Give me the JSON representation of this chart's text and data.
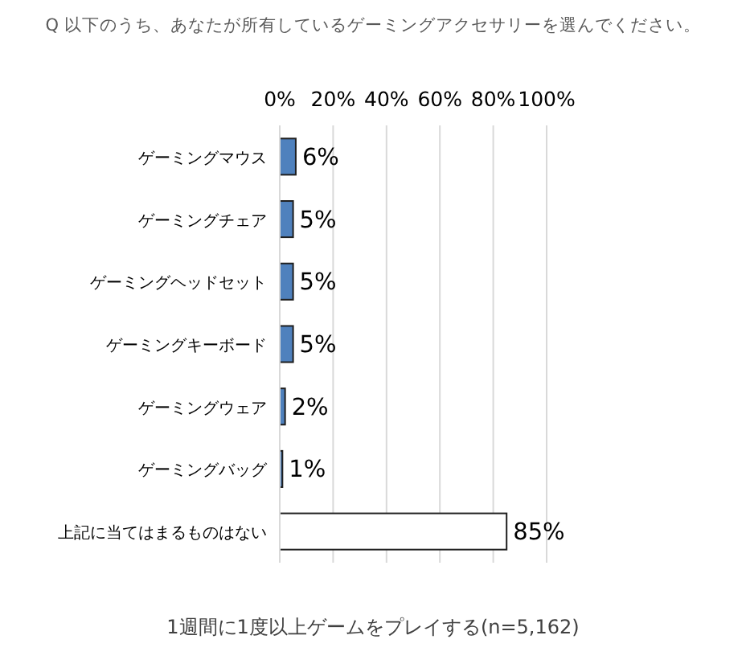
{
  "chart_data": {
    "type": "bar",
    "orientation": "horizontal",
    "title": "Q 以下のうち、あなたが所有しているゲーミングアクセサリーを選んでください。",
    "categories": [
      "ゲーミングマウス",
      "ゲーミングチェア",
      "ゲーミングヘッドセット",
      "ゲーミングキーボード",
      "ゲーミングウェア",
      "ゲーミングバッグ",
      "上記に当てはまるものはない"
    ],
    "values": [
      6,
      5,
      5,
      5,
      2,
      1,
      85
    ],
    "colors": [
      "#4f81bd",
      "#4f81bd",
      "#4f81bd",
      "#4f81bd",
      "#4f81bd",
      "#4f81bd",
      "#ffffff"
    ],
    "value_labels": [
      "6%",
      "5%",
      "5%",
      "5%",
      "2%",
      "1%",
      "85%"
    ],
    "xlim": [
      0,
      100
    ],
    "xticks": [
      {
        "value": 0,
        "label": "0%"
      },
      {
        "value": 20,
        "label": "20%"
      },
      {
        "value": 40,
        "label": "40%"
      },
      {
        "value": 60,
        "label": "60%"
      },
      {
        "value": 80,
        "label": "80%"
      },
      {
        "value": 100,
        "label": "100%"
      }
    ],
    "grid": "x",
    "annotations": [
      "1週間に1度以上ゲームをプレイする(n=5,162)"
    ]
  }
}
